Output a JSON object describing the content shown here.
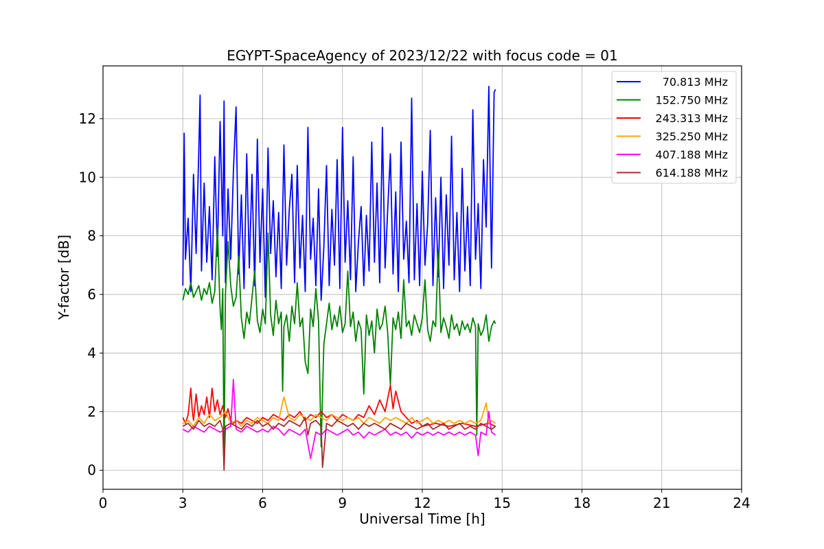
{
  "chart_data": {
    "type": "line",
    "title": "EGYPT-SpaceAgency of 2023/12/22 with focus code = 01",
    "xlabel": "Universal Time [h]",
    "ylabel": "Y-factor [dB]",
    "xlim": [
      0,
      24
    ],
    "ylim": [
      -0.65,
      13.8
    ],
    "xticks": [
      0,
      3,
      6,
      9,
      12,
      15,
      18,
      21,
      24
    ],
    "yticks": [
      0,
      2,
      4,
      6,
      8,
      10,
      12
    ],
    "grid": true,
    "legend_position": "top-right",
    "series": [
      {
        "name": " 70.813 MHz",
        "color": "#0000ff",
        "x": [
          3.0,
          3.05,
          3.1,
          3.2,
          3.3,
          3.4,
          3.5,
          3.6,
          3.65,
          3.7,
          3.8,
          3.9,
          4.0,
          4.1,
          4.2,
          4.3,
          4.4,
          4.5,
          4.55,
          4.6,
          4.7,
          4.8,
          4.9,
          5.0,
          5.1,
          5.2,
          5.3,
          5.4,
          5.5,
          5.6,
          5.7,
          5.8,
          5.9,
          6.0,
          6.1,
          6.2,
          6.3,
          6.4,
          6.5,
          6.6,
          6.7,
          6.8,
          6.9,
          7.0,
          7.1,
          7.2,
          7.3,
          7.4,
          7.5,
          7.6,
          7.7,
          7.8,
          7.9,
          8.0,
          8.1,
          8.2,
          8.3,
          8.4,
          8.5,
          8.6,
          8.7,
          8.8,
          8.9,
          9.0,
          9.1,
          9.2,
          9.3,
          9.4,
          9.5,
          9.6,
          9.7,
          9.8,
          9.9,
          10.0,
          10.1,
          10.2,
          10.3,
          10.4,
          10.5,
          10.6,
          10.7,
          10.8,
          10.9,
          11.0,
          11.1,
          11.2,
          11.3,
          11.4,
          11.5,
          11.6,
          11.7,
          11.8,
          11.9,
          12.0,
          12.1,
          12.2,
          12.3,
          12.4,
          12.5,
          12.6,
          12.7,
          12.8,
          12.9,
          13.0,
          13.1,
          13.2,
          13.3,
          13.4,
          13.5,
          13.6,
          13.7,
          13.8,
          13.9,
          14.0,
          14.1,
          14.2,
          14.3,
          14.4,
          14.5,
          14.6,
          14.7,
          14.75
        ],
        "values": [
          6.3,
          11.5,
          7.2,
          8.6,
          6.1,
          10.1,
          7.4,
          10.9,
          12.8,
          6.8,
          9.8,
          7.1,
          9.0,
          6.5,
          10.7,
          7.3,
          11.9,
          8.0,
          12.6,
          6.4,
          9.6,
          7.2,
          10.2,
          12.4,
          6.7,
          9.4,
          6.2,
          10.8,
          6.9,
          10.1,
          6.3,
          11.3,
          7.1,
          9.6,
          5.9,
          11.0,
          7.4,
          9.2,
          6.6,
          8.8,
          6.2,
          11.1,
          7.0,
          8.9,
          10.1,
          6.4,
          10.4,
          6.9,
          8.7,
          6.1,
          11.7,
          7.2,
          8.6,
          6.3,
          9.6,
          5.8,
          7.6,
          10.4,
          6.3,
          8.9,
          7.0,
          10.6,
          6.2,
          11.7,
          7.1,
          9.2,
          6.5,
          10.7,
          6.1,
          7.8,
          9.0,
          6.3,
          8.7,
          6.8,
          11.2,
          7.1,
          9.8,
          6.4,
          11.7,
          6.9,
          8.9,
          10.8,
          6.7,
          9.5,
          6.1,
          11.2,
          7.2,
          8.5,
          6.4,
          12.7,
          6.5,
          9.1,
          6.3,
          10.2,
          7.0,
          8.4,
          11.6,
          6.3,
          9.3,
          6.6,
          10.0,
          6.2,
          9.4,
          7.0,
          11.4,
          6.5,
          8.8,
          6.1,
          10.3,
          6.8,
          9.0,
          6.3,
          12.3,
          7.2,
          9.1,
          6.2,
          10.6,
          8.3,
          13.1,
          6.9,
          12.9,
          13.0
        ]
      },
      {
        "name": "152.750 MHz",
        "color": "#008000",
        "x": [
          3.0,
          3.1,
          3.2,
          3.3,
          3.4,
          3.5,
          3.6,
          3.7,
          3.8,
          3.9,
          4.0,
          4.1,
          4.2,
          4.3,
          4.4,
          4.45,
          4.5,
          4.55,
          4.6,
          4.7,
          4.8,
          4.9,
          5.0,
          5.1,
          5.2,
          5.3,
          5.4,
          5.5,
          5.6,
          5.7,
          5.8,
          5.9,
          6.0,
          6.1,
          6.2,
          6.3,
          6.4,
          6.5,
          6.6,
          6.7,
          6.75,
          6.8,
          6.9,
          7.0,
          7.1,
          7.2,
          7.3,
          7.4,
          7.5,
          7.6,
          7.7,
          7.8,
          7.9,
          8.0,
          8.1,
          8.2,
          8.3,
          8.4,
          8.5,
          8.6,
          8.7,
          8.8,
          8.9,
          9.0,
          9.1,
          9.2,
          9.3,
          9.4,
          9.5,
          9.6,
          9.7,
          9.8,
          9.9,
          10.0,
          10.1,
          10.2,
          10.3,
          10.4,
          10.5,
          10.6,
          10.7,
          10.8,
          10.9,
          11.0,
          11.1,
          11.2,
          11.3,
          11.4,
          11.5,
          11.6,
          11.7,
          11.8,
          11.9,
          12.0,
          12.1,
          12.2,
          12.3,
          12.4,
          12.5,
          12.6,
          12.7,
          12.8,
          12.9,
          13.0,
          13.1,
          13.2,
          13.3,
          13.4,
          13.5,
          13.6,
          13.7,
          13.8,
          13.9,
          14.0,
          14.05,
          14.1,
          14.2,
          14.3,
          14.4,
          14.5,
          14.6,
          14.7,
          14.75
        ],
        "values": [
          5.8,
          6.2,
          6.0,
          6.4,
          5.9,
          6.1,
          6.3,
          5.8,
          6.2,
          6.0,
          6.4,
          5.7,
          6.1,
          8.3,
          5.5,
          4.8,
          6.2,
          0.2,
          6.0,
          7.8,
          6.3,
          5.6,
          5.9,
          7.3,
          5.2,
          4.5,
          5.4,
          5.0,
          5.9,
          6.8,
          5.1,
          4.7,
          5.5,
          5.0,
          8.1,
          5.3,
          4.6,
          5.8,
          5.0,
          5.4,
          2.7,
          4.9,
          5.3,
          4.4,
          5.6,
          5.0,
          6.4,
          4.9,
          5.2,
          3.7,
          3.3,
          5.5,
          4.9,
          6.2,
          5.1,
          0.8,
          4.3,
          5.0,
          5.7,
          4.8,
          5.3,
          4.9,
          5.6,
          4.7,
          5.0,
          6.8,
          4.9,
          5.4,
          4.4,
          5.1,
          4.8,
          2.6,
          5.3,
          4.6,
          5.1,
          4.0,
          5.5,
          4.8,
          5.0,
          5.6,
          4.7,
          2.9,
          5.2,
          4.8,
          5.4,
          4.5,
          6.5,
          4.9,
          5.1,
          4.6,
          5.3,
          5.0,
          4.7,
          5.2,
          6.5,
          4.8,
          4.4,
          5.1,
          4.9,
          7.5,
          4.7,
          5.2,
          4.9,
          4.5,
          5.3,
          4.8,
          5.0,
          4.6,
          5.1,
          4.8,
          5.0,
          4.7,
          5.2,
          4.9,
          1.2,
          5.0,
          4.6,
          4.8,
          5.3,
          4.4,
          4.9,
          5.1,
          5.0
        ]
      },
      {
        "name": "243.313 MHz",
        "color": "#ff0000",
        "x": [
          3.0,
          3.1,
          3.2,
          3.3,
          3.35,
          3.4,
          3.5,
          3.6,
          3.7,
          3.8,
          3.9,
          4.0,
          4.1,
          4.2,
          4.3,
          4.4,
          4.5,
          4.6,
          4.7,
          4.8,
          4.9,
          5.0,
          5.2,
          5.4,
          5.6,
          5.8,
          6.0,
          6.2,
          6.4,
          6.6,
          6.8,
          7.0,
          7.2,
          7.4,
          7.6,
          7.8,
          8.0,
          8.2,
          8.4,
          8.6,
          8.8,
          9.0,
          9.2,
          9.4,
          9.6,
          9.8,
          10.0,
          10.2,
          10.4,
          10.6,
          10.8,
          10.9,
          11.0,
          11.2,
          11.4,
          11.6,
          11.8,
          12.0,
          12.5,
          13.0,
          13.5,
          14.0,
          14.5,
          14.75
        ],
        "values": [
          1.8,
          1.6,
          1.9,
          2.8,
          2.1,
          1.7,
          2.6,
          1.8,
          2.2,
          1.9,
          2.5,
          1.8,
          2.8,
          2.0,
          2.4,
          1.9,
          2.2,
          1.8,
          2.1,
          1.7,
          1.6,
          1.7,
          1.6,
          1.8,
          1.7,
          1.6,
          1.8,
          1.7,
          1.9,
          1.8,
          1.7,
          1.9,
          1.8,
          2.0,
          1.7,
          1.9,
          1.8,
          2.0,
          1.8,
          1.9,
          1.7,
          1.9,
          1.8,
          1.7,
          1.9,
          1.8,
          2.2,
          1.9,
          2.4,
          2.0,
          2.9,
          2.1,
          2.7,
          2.0,
          1.8,
          1.6,
          1.7,
          1.5,
          1.6,
          1.5,
          1.6,
          1.5,
          1.6,
          1.5
        ]
      },
      {
        "name": "325.250 MHz",
        "color": "#ffa500",
        "x": [
          3.0,
          3.2,
          3.4,
          3.6,
          3.8,
          4.0,
          4.2,
          4.4,
          4.6,
          4.8,
          5.0,
          5.2,
          5.4,
          5.6,
          5.8,
          6.0,
          6.2,
          6.4,
          6.6,
          6.8,
          7.0,
          7.2,
          7.4,
          7.6,
          7.8,
          8.0,
          8.2,
          8.4,
          8.6,
          8.8,
          9.0,
          9.2,
          9.4,
          9.6,
          9.8,
          10.0,
          10.2,
          10.4,
          10.6,
          10.8,
          11.0,
          11.2,
          11.4,
          11.6,
          11.8,
          12.0,
          12.2,
          12.4,
          12.6,
          12.8,
          13.0,
          13.2,
          13.4,
          13.6,
          13.8,
          14.0,
          14.2,
          14.4,
          14.5,
          14.6,
          14.75
        ],
        "values": [
          1.6,
          1.7,
          1.5,
          1.8,
          1.6,
          1.9,
          1.7,
          1.8,
          2.0,
          1.6,
          1.7,
          1.5,
          1.7,
          1.6,
          1.8,
          1.7,
          1.6,
          1.8,
          1.7,
          2.5,
          1.8,
          1.7,
          1.9,
          1.8,
          1.7,
          1.9,
          1.8,
          1.7,
          1.9,
          1.8,
          1.7,
          1.8,
          1.7,
          1.8,
          1.6,
          1.8,
          1.7,
          1.6,
          1.8,
          1.7,
          1.8,
          1.7,
          1.6,
          1.8,
          1.6,
          1.7,
          1.8,
          1.6,
          1.7,
          1.6,
          1.7,
          1.6,
          1.7,
          1.6,
          1.7,
          1.6,
          1.7,
          2.3,
          1.6,
          1.7,
          1.6
        ]
      },
      {
        "name": "407.188 MHz",
        "color": "#ff00ff",
        "x": [
          3.0,
          3.2,
          3.4,
          3.6,
          3.8,
          4.0,
          4.2,
          4.4,
          4.6,
          4.8,
          4.9,
          5.0,
          5.2,
          5.4,
          5.6,
          5.8,
          6.0,
          6.2,
          6.4,
          6.6,
          6.8,
          7.0,
          7.2,
          7.4,
          7.6,
          7.8,
          8.0,
          8.2,
          8.4,
          8.6,
          8.8,
          9.0,
          9.2,
          9.4,
          9.6,
          9.8,
          10.0,
          10.2,
          10.4,
          10.6,
          10.8,
          11.0,
          11.2,
          11.4,
          11.6,
          11.8,
          12.0,
          12.2,
          12.4,
          12.6,
          12.8,
          13.0,
          13.2,
          13.4,
          13.6,
          13.8,
          14.0,
          14.1,
          14.2,
          14.4,
          14.5,
          14.6,
          14.75
        ],
        "values": [
          1.4,
          1.3,
          1.5,
          1.4,
          1.3,
          1.5,
          1.4,
          1.3,
          1.4,
          1.5,
          3.1,
          1.4,
          1.3,
          1.5,
          1.4,
          1.3,
          1.4,
          1.3,
          1.5,
          1.4,
          1.2,
          1.4,
          1.3,
          1.2,
          1.4,
          0.4,
          1.3,
          1.2,
          1.4,
          1.3,
          1.2,
          1.3,
          1.4,
          1.2,
          1.3,
          1.1,
          1.3,
          1.2,
          1.3,
          1.4,
          1.2,
          1.3,
          1.2,
          1.3,
          1.1,
          1.3,
          1.2,
          1.3,
          1.2,
          1.3,
          1.2,
          1.3,
          1.2,
          1.3,
          1.2,
          1.3,
          1.2,
          0.5,
          1.3,
          1.2,
          2.0,
          1.3,
          1.2
        ]
      },
      {
        "name": "614.188 MHz",
        "color": "#a52a2a",
        "x": [
          3.0,
          3.2,
          3.4,
          3.6,
          3.8,
          4.0,
          4.2,
          4.4,
          4.5,
          4.55,
          4.6,
          4.8,
          5.0,
          5.2,
          5.4,
          5.6,
          5.8,
          6.0,
          6.2,
          6.4,
          6.6,
          6.8,
          7.0,
          7.2,
          7.4,
          7.6,
          7.7,
          7.8,
          8.0,
          8.2,
          8.25,
          8.4,
          8.6,
          8.8,
          9.0,
          9.2,
          9.4,
          9.6,
          9.8,
          10.0,
          10.2,
          10.4,
          10.6,
          10.8,
          11.0,
          11.2,
          11.4,
          11.6,
          11.8,
          12.0,
          12.2,
          12.4,
          12.6,
          12.8,
          13.0,
          13.2,
          13.4,
          13.6,
          13.8,
          14.0,
          14.2,
          14.4,
          14.6,
          14.75
        ],
        "values": [
          1.5,
          1.6,
          1.4,
          1.7,
          1.5,
          1.6,
          1.5,
          1.7,
          1.4,
          0.0,
          1.5,
          1.6,
          1.5,
          1.4,
          1.6,
          1.5,
          1.7,
          1.5,
          1.6,
          1.4,
          1.6,
          1.5,
          1.7,
          1.6,
          1.5,
          1.8,
          1.2,
          1.6,
          1.7,
          1.5,
          0.1,
          1.6,
          1.5,
          1.7,
          1.6,
          1.5,
          1.6,
          1.4,
          1.6,
          1.5,
          1.6,
          1.5,
          1.4,
          1.6,
          1.5,
          1.4,
          1.6,
          1.5,
          1.4,
          1.5,
          1.6,
          1.4,
          1.5,
          1.6,
          1.4,
          1.5,
          1.6,
          1.4,
          1.5,
          1.4,
          1.6,
          1.5,
          1.4,
          1.5
        ]
      }
    ]
  }
}
